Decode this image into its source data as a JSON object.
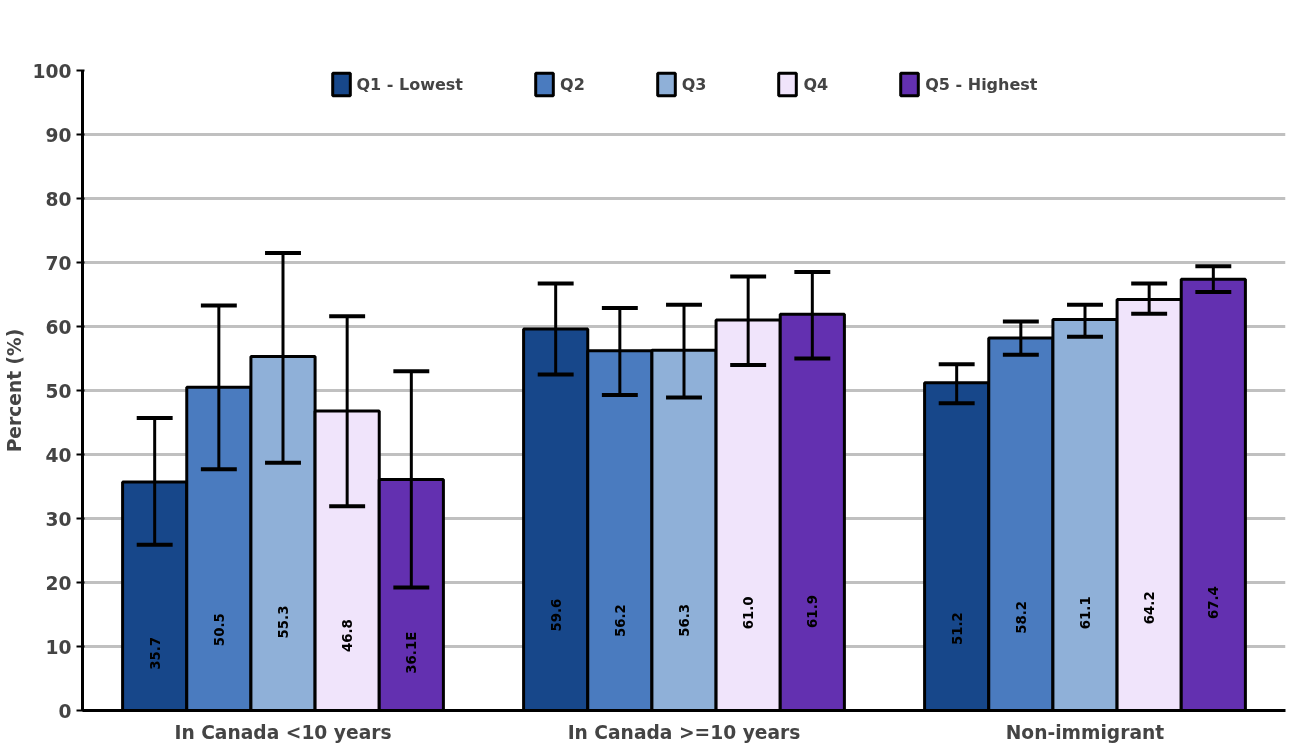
{
  "chart_data": {
    "type": "bar",
    "categories": [
      "In Canada <10 years",
      "In Canada >=10 years",
      "Non-immigrant"
    ],
    "ylabel": "Percent (%)",
    "ylim": [
      0,
      100
    ],
    "yticks": [
      0,
      10,
      20,
      30,
      40,
      50,
      60,
      70,
      80,
      90,
      100
    ],
    "grid": "y",
    "legend": "top",
    "series": [
      {
        "name": "Q1 - Lowest",
        "color": "#17478a",
        "values": [
          35.7,
          59.6,
          51.2
        ],
        "errors": [
          [
            25.9,
            45.7
          ],
          [
            52.5,
            66.7
          ],
          [
            48.0,
            54.1
          ]
        ],
        "value_labels": [
          "35.7",
          "59.6",
          "51.2"
        ]
      },
      {
        "name": "Q2",
        "color": "#4a7bbf",
        "values": [
          50.5,
          56.2,
          58.2
        ],
        "errors": [
          [
            37.7,
            63.3
          ],
          [
            49.3,
            62.9
          ],
          [
            55.6,
            60.8
          ]
        ],
        "value_labels": [
          "50.5",
          "56.2",
          "58.2"
        ]
      },
      {
        "name": "Q3",
        "color": "#8fb0d8",
        "values": [
          55.3,
          56.3,
          61.1
        ],
        "errors": [
          [
            38.7,
            71.5
          ],
          [
            48.9,
            63.4
          ],
          [
            58.4,
            63.4
          ]
        ],
        "value_labels": [
          "55.3",
          "56.3",
          "61.1"
        ]
      },
      {
        "name": "Q4",
        "color": "#f0e4fb",
        "values": [
          46.8,
          61.0,
          64.2
        ],
        "errors": [
          [
            31.9,
            61.6
          ],
          [
            54.0,
            67.8
          ],
          [
            62.0,
            66.7
          ]
        ],
        "value_labels": [
          "46.8",
          "61.0",
          "64.2"
        ]
      },
      {
        "name": "Q5 - Highest",
        "color": "#6330b0",
        "values": [
          36.1,
          61.9,
          67.4
        ],
        "errors": [
          [
            19.2,
            53.0
          ],
          [
            55.0,
            68.5
          ],
          [
            65.4,
            69.4
          ]
        ],
        "value_labels": [
          "36.1E",
          "61.9",
          "67.4"
        ]
      }
    ]
  }
}
